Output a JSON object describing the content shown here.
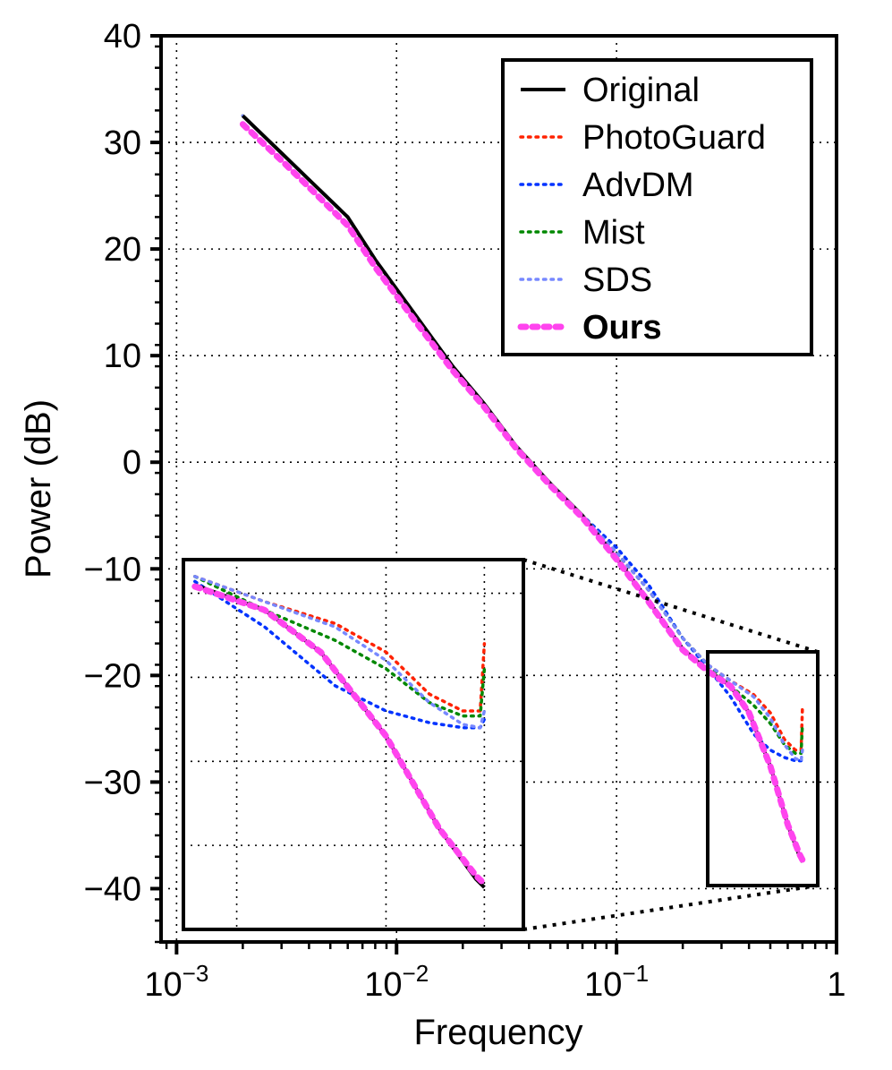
{
  "chart_data": {
    "type": "line",
    "xscale": "log",
    "xlabel": "Frequency",
    "ylabel": "Power (dB)",
    "xlim": [
      0.00085,
      1
    ],
    "ylim": [
      -45,
      40
    ],
    "x_ticks": [
      {
        "base": "10",
        "exp": "−3",
        "value": 0.001
      },
      {
        "base": "10",
        "exp": "−2",
        "value": 0.01
      },
      {
        "base": "10",
        "exp": "−1",
        "value": 0.1
      },
      {
        "base": "1",
        "exp": "",
        "value": 1
      }
    ],
    "y_ticks": [
      {
        "label": "40",
        "value": 40
      },
      {
        "label": "30",
        "value": 30
      },
      {
        "label": "20",
        "value": 20
      },
      {
        "label": "10",
        "value": 10
      },
      {
        "label": "0",
        "value": 0
      },
      {
        "label": "−10",
        "value": -10
      },
      {
        "label": "−20",
        "value": -20
      },
      {
        "label": "−30",
        "value": -30
      },
      {
        "label": "−40",
        "value": -40
      }
    ],
    "grid": true,
    "legend_position": "top-right",
    "series": [
      {
        "name": "Original",
        "color": "#000000",
        "style": "solid",
        "bold": false,
        "x": [
          0.002,
          0.003,
          0.004,
          0.006,
          0.008,
          0.012,
          0.018,
          0.025,
          0.035,
          0.05,
          0.07,
          0.1,
          0.14,
          0.2,
          0.26,
          0.33,
          0.4,
          0.5,
          0.6,
          0.68,
          0.7
        ],
        "y": [
          32.5,
          29.0,
          26.5,
          23.0,
          19.0,
          14.0,
          9.0,
          5.5,
          1.5,
          -2.0,
          -5.0,
          -9.0,
          -13.0,
          -17.5,
          -19.5,
          -21.0,
          -23.5,
          -28.5,
          -34.0,
          -37.0,
          -37.5
        ]
      },
      {
        "name": "PhotoGuard",
        "color": "#ff2200",
        "style": "dotted",
        "bold": false,
        "x": [
          0.002,
          0.003,
          0.004,
          0.006,
          0.008,
          0.012,
          0.018,
          0.025,
          0.035,
          0.05,
          0.07,
          0.1,
          0.14,
          0.2,
          0.26,
          0.33,
          0.42,
          0.5,
          0.58,
          0.65,
          0.69,
          0.7
        ],
        "y": [
          32.5,
          29.0,
          26.5,
          23.0,
          19.0,
          14.0,
          9.0,
          5.5,
          1.5,
          -2.0,
          -5.0,
          -8.5,
          -12.0,
          -16.5,
          -19.0,
          -20.5,
          -21.8,
          -23.5,
          -26.0,
          -27.0,
          -27.0,
          -23.0
        ]
      },
      {
        "name": "AdvDM",
        "color": "#0033ff",
        "style": "dotted",
        "bold": false,
        "x": [
          0.002,
          0.003,
          0.004,
          0.006,
          0.008,
          0.012,
          0.018,
          0.025,
          0.035,
          0.05,
          0.07,
          0.1,
          0.14,
          0.2,
          0.26,
          0.33,
          0.42,
          0.5,
          0.58,
          0.65,
          0.69,
          0.7
        ],
        "y": [
          32.5,
          29.0,
          26.5,
          23.0,
          19.0,
          14.0,
          9.0,
          5.5,
          1.5,
          -2.0,
          -5.0,
          -8.0,
          -11.5,
          -16.5,
          -19.3,
          -22.0,
          -25.5,
          -27.0,
          -27.7,
          -28.0,
          -28.0,
          -27.5
        ]
      },
      {
        "name": "Mist",
        "color": "#008800",
        "style": "dotted",
        "bold": false,
        "x": [
          0.002,
          0.003,
          0.004,
          0.006,
          0.008,
          0.012,
          0.018,
          0.025,
          0.035,
          0.05,
          0.07,
          0.1,
          0.14,
          0.2,
          0.26,
          0.33,
          0.42,
          0.5,
          0.58,
          0.65,
          0.69,
          0.7
        ],
        "y": [
          32.5,
          29.0,
          26.5,
          23.0,
          19.0,
          14.0,
          9.0,
          5.5,
          1.5,
          -2.0,
          -5.0,
          -8.5,
          -12.0,
          -16.5,
          -19.0,
          -21.0,
          -22.8,
          -24.5,
          -26.5,
          -27.3,
          -27.3,
          -24.5
        ]
      },
      {
        "name": "SDS",
        "color": "#7788ff",
        "style": "dotted",
        "bold": false,
        "x": [
          0.002,
          0.003,
          0.004,
          0.006,
          0.008,
          0.012,
          0.018,
          0.025,
          0.035,
          0.05,
          0.07,
          0.1,
          0.14,
          0.2,
          0.26,
          0.33,
          0.42,
          0.5,
          0.58,
          0.65,
          0.69,
          0.7
        ],
        "y": [
          32.5,
          29.0,
          26.5,
          23.0,
          19.0,
          14.0,
          9.0,
          5.5,
          1.5,
          -2.0,
          -5.0,
          -8.5,
          -12.0,
          -16.5,
          -19.0,
          -20.5,
          -22.0,
          -24.0,
          -26.5,
          -27.8,
          -28.0,
          -27.0
        ]
      },
      {
        "name": "Ours",
        "color": "#ff44ee",
        "style": "dotted",
        "bold": true,
        "x": [
          0.002,
          0.003,
          0.004,
          0.006,
          0.008,
          0.012,
          0.018,
          0.025,
          0.035,
          0.05,
          0.07,
          0.1,
          0.14,
          0.2,
          0.26,
          0.33,
          0.4,
          0.5,
          0.6,
          0.68,
          0.7
        ],
        "y": [
          31.7,
          28.3,
          25.8,
          22.2,
          18.3,
          13.4,
          8.6,
          5.2,
          1.3,
          -2.2,
          -5.2,
          -9.1,
          -13.1,
          -17.6,
          -19.6,
          -21.0,
          -23.5,
          -28.5,
          -34.0,
          -36.8,
          -37.3
        ]
      }
    ],
    "inset": {
      "xlim": [
        0.25,
        0.8
      ],
      "ylim": [
        -40,
        -18
      ]
    }
  }
}
